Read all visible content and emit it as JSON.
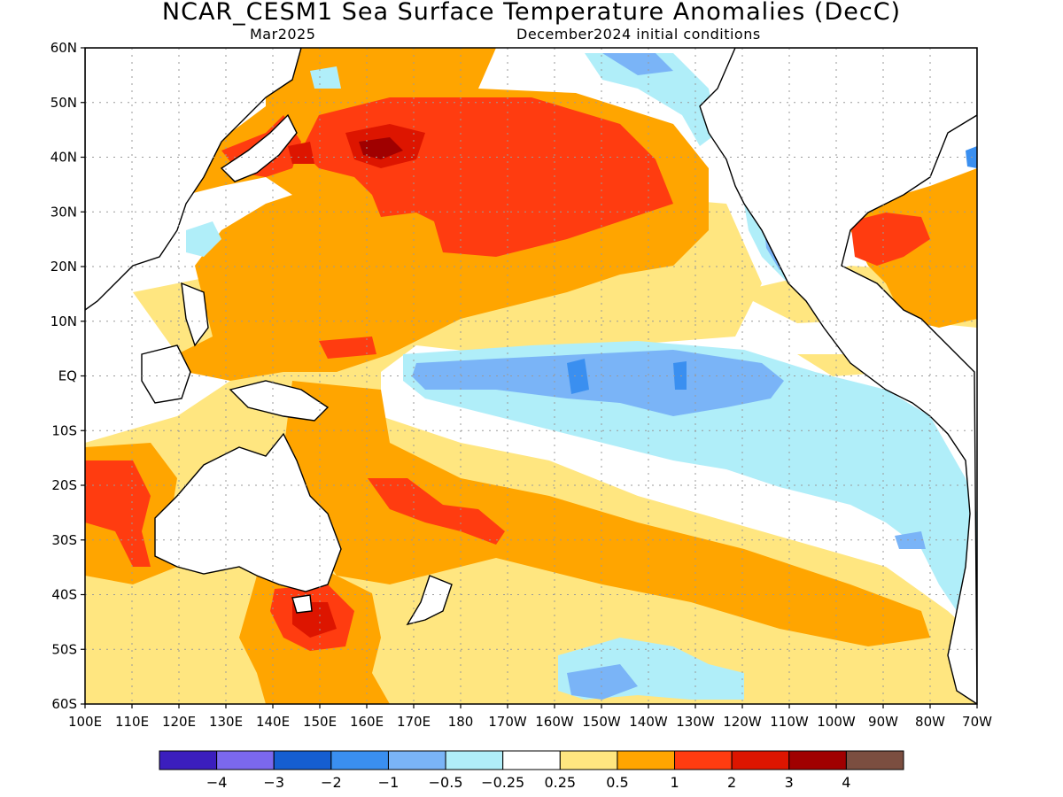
{
  "title": "NCAR_CESM1 Sea Surface Temperature Anomalies (DecC)",
  "subtitle_left": "Mar2025",
  "subtitle_right": "December2024 initial conditions",
  "y_axis_labels": [
    "60N",
    "50N",
    "40N",
    "30N",
    "20N",
    "10N",
    "EQ",
    "10S",
    "20S",
    "30S",
    "40S",
    "50S",
    "60S"
  ],
  "x_axis_labels": [
    "100E",
    "110E",
    "120E",
    "130E",
    "140E",
    "150E",
    "160E",
    "170E",
    "180",
    "170W",
    "160W",
    "150W",
    "140W",
    "130W",
    "120W",
    "110W",
    "100W",
    "90W",
    "80W",
    "70W"
  ],
  "colorbar": {
    "colors": [
      "#3b1ebd",
      "#7b68ee",
      "#155ed1",
      "#3a8ff0",
      "#7ab4f7",
      "#b0eef9",
      "#ffffff",
      "#ffe680",
      "#ffa500",
      "#ff3c10",
      "#dd1500",
      "#a00000",
      "#7b4e40"
    ],
    "labels": [
      "−4",
      "−3",
      "−2",
      "−1",
      "−0.5",
      "−0.25",
      "0.25",
      "0.5",
      "1",
      "2",
      "3",
      "4"
    ]
  }
}
